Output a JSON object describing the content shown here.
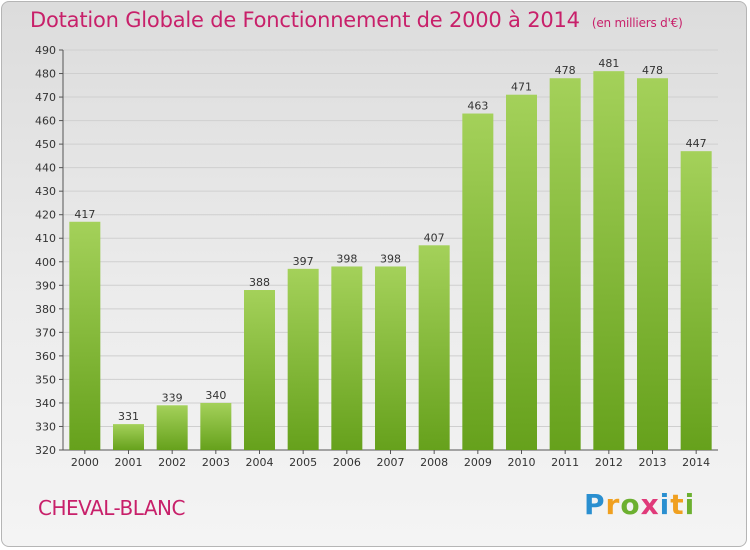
{
  "header": {
    "title": "Dotation Globale de Fonctionnement de 2000 à 2014",
    "unit": "(en milliers d'€)"
  },
  "footer": {
    "commune": "CHEVAL-BLANC",
    "logo": "Proxiti"
  },
  "colors": {
    "title": "#c8206a",
    "bar_light": "#a4d15a",
    "bar_dark": "#66a11c",
    "logo_letters": [
      "#2a8fd0",
      "#f0a020",
      "#6cb030",
      "#e03a7a",
      "#2a8fd0",
      "#f0a020",
      "#6cb030"
    ]
  },
  "chart_data": {
    "type": "bar",
    "categories": [
      "2000",
      "2001",
      "2002",
      "2003",
      "2004",
      "2005",
      "2006",
      "2007",
      "2008",
      "2009",
      "2010",
      "2011",
      "2012",
      "2013",
      "2014"
    ],
    "values": [
      417,
      331,
      339,
      340,
      388,
      397,
      398,
      398,
      407,
      463,
      471,
      478,
      481,
      478,
      447
    ],
    "ylim": [
      320,
      490
    ],
    "yticks": [
      320,
      330,
      340,
      350,
      360,
      370,
      380,
      390,
      400,
      410,
      420,
      430,
      440,
      450,
      460,
      470,
      480,
      490
    ],
    "grid": true,
    "data_labels": true
  }
}
